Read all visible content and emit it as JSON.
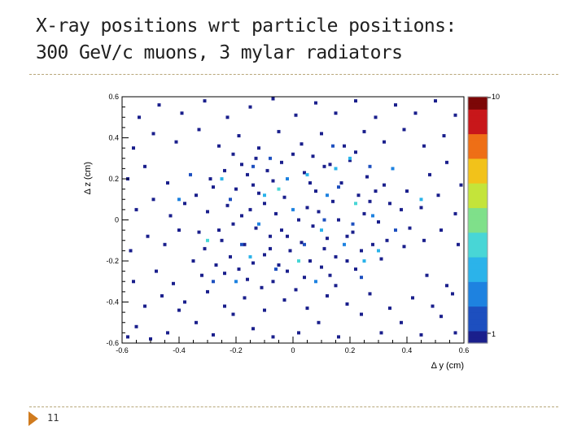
{
  "slide": {
    "title_line1": "X-ray positions wrt particle positions:",
    "title_line2": "300 GeV/c muons, 3 mylar radiators",
    "page_number": "11"
  },
  "colors": {
    "accent": "#d07b1e",
    "rule": "#b8a77a",
    "marker_low": "#1a1f8c"
  },
  "chart_data": {
    "type": "heatmap",
    "title": "",
    "xlabel": "Δ y (cm)",
    "ylabel": "Δ z (cm)",
    "xlim": [
      -0.6,
      0.6
    ],
    "ylim": [
      -0.6,
      0.6
    ],
    "xticks": [
      "-0.6",
      "-0.4",
      "-0.2",
      "0",
      "0.2",
      "0.4",
      "0.6"
    ],
    "yticks": [
      "-0.6",
      "-0.4",
      "-0.2",
      "0",
      "0.2",
      "0.4",
      "0.6"
    ],
    "colorbar": {
      "min": 1,
      "max": 10,
      "labels": [
        "1",
        "10"
      ]
    },
    "points": [
      [
        -0.58,
        -0.57,
        1
      ],
      [
        -0.55,
        -0.52,
        1
      ],
      [
        -0.5,
        -0.58,
        1
      ],
      [
        -0.44,
        -0.55,
        1
      ],
      [
        -0.4,
        -0.44,
        1
      ],
      [
        -0.34,
        -0.5,
        1
      ],
      [
        -0.28,
        -0.56,
        1
      ],
      [
        -0.21,
        -0.46,
        1
      ],
      [
        -0.14,
        -0.53,
        1
      ],
      [
        -0.07,
        -0.57,
        1
      ],
      [
        0.02,
        -0.55,
        1
      ],
      [
        0.09,
        -0.5,
        1
      ],
      [
        0.16,
        -0.57,
        1
      ],
      [
        0.24,
        -0.46,
        1
      ],
      [
        0.31,
        -0.55,
        1
      ],
      [
        0.38,
        -0.5,
        1
      ],
      [
        0.45,
        -0.56,
        1
      ],
      [
        0.52,
        -0.47,
        1
      ],
      [
        0.57,
        -0.55,
        1
      ],
      [
        -0.52,
        -0.42,
        1
      ],
      [
        -0.46,
        -0.37,
        1
      ],
      [
        -0.38,
        -0.4,
        1
      ],
      [
        -0.3,
        -0.35,
        1
      ],
      [
        -0.24,
        -0.42,
        1
      ],
      [
        -0.17,
        -0.38,
        1
      ],
      [
        -0.1,
        -0.44,
        1
      ],
      [
        -0.03,
        -0.39,
        1
      ],
      [
        0.05,
        -0.43,
        1
      ],
      [
        0.12,
        -0.37,
        1
      ],
      [
        0.19,
        -0.41,
        1
      ],
      [
        0.27,
        -0.36,
        1
      ],
      [
        0.34,
        -0.43,
        1
      ],
      [
        0.42,
        -0.38,
        1
      ],
      [
        0.49,
        -0.42,
        1
      ],
      [
        0.56,
        -0.36,
        1
      ],
      [
        -0.56,
        -0.3,
        1
      ],
      [
        -0.48,
        -0.25,
        1
      ],
      [
        -0.42,
        -0.31,
        1
      ],
      [
        0.47,
        -0.27,
        1
      ],
      [
        0.54,
        -0.32,
        1
      ],
      [
        -0.57,
        -0.15,
        1
      ],
      [
        -0.51,
        -0.08,
        1
      ],
      [
        -0.45,
        -0.12,
        1
      ],
      [
        0.46,
        -0.1,
        1
      ],
      [
        0.52,
        -0.05,
        1
      ],
      [
        0.58,
        -0.12,
        1
      ],
      [
        -0.55,
        0.05,
        1
      ],
      [
        -0.49,
        0.1,
        1
      ],
      [
        -0.43,
        0.02,
        1
      ],
      [
        0.45,
        0.06,
        1
      ],
      [
        0.51,
        0.12,
        1
      ],
      [
        0.57,
        0.03,
        1
      ],
      [
        -0.58,
        0.2,
        1
      ],
      [
        -0.52,
        0.26,
        1
      ],
      [
        -0.44,
        0.18,
        1
      ],
      [
        0.48,
        0.22,
        1
      ],
      [
        0.54,
        0.28,
        1
      ],
      [
        0.59,
        0.17,
        1
      ],
      [
        -0.56,
        0.35,
        1
      ],
      [
        -0.49,
        0.42,
        1
      ],
      [
        -0.41,
        0.38,
        1
      ],
      [
        -0.33,
        0.44,
        1
      ],
      [
        -0.26,
        0.36,
        1
      ],
      [
        -0.19,
        0.41,
        1
      ],
      [
        -0.12,
        0.35,
        1
      ],
      [
        -0.05,
        0.43,
        1
      ],
      [
        0.03,
        0.37,
        1
      ],
      [
        0.1,
        0.42,
        1
      ],
      [
        0.18,
        0.36,
        1
      ],
      [
        0.25,
        0.43,
        1
      ],
      [
        0.32,
        0.38,
        1
      ],
      [
        0.39,
        0.44,
        1
      ],
      [
        0.46,
        0.36,
        1
      ],
      [
        0.53,
        0.41,
        1
      ],
      [
        -0.54,
        0.5,
        1
      ],
      [
        -0.47,
        0.56,
        1
      ],
      [
        -0.39,
        0.52,
        1
      ],
      [
        -0.31,
        0.58,
        1
      ],
      [
        -0.23,
        0.5,
        1
      ],
      [
        -0.15,
        0.55,
        1
      ],
      [
        -0.07,
        0.59,
        1
      ],
      [
        0.01,
        0.51,
        1
      ],
      [
        0.08,
        0.57,
        1
      ],
      [
        0.15,
        0.52,
        1
      ],
      [
        0.22,
        0.58,
        1
      ],
      [
        0.29,
        0.5,
        1
      ],
      [
        0.36,
        0.56,
        1
      ],
      [
        0.43,
        0.52,
        1
      ],
      [
        0.5,
        0.58,
        1
      ],
      [
        0.57,
        0.51,
        1
      ],
      [
        -0.35,
        -0.2,
        1
      ],
      [
        -0.31,
        -0.14,
        1
      ],
      [
        -0.33,
        -0.06,
        1
      ],
      [
        -0.3,
        0.04,
        1
      ],
      [
        -0.34,
        0.12,
        1
      ],
      [
        -0.29,
        0.2,
        1
      ],
      [
        -0.24,
        -0.26,
        1
      ],
      [
        -0.22,
        -0.18,
        1
      ],
      [
        -0.25,
        -0.1,
        1
      ],
      [
        -0.21,
        -0.02,
        1
      ],
      [
        -0.23,
        0.07,
        1
      ],
      [
        -0.2,
        0.15,
        1
      ],
      [
        -0.24,
        0.24,
        1
      ],
      [
        -0.16,
        -0.29,
        1
      ],
      [
        -0.14,
        -0.21,
        1
      ],
      [
        -0.17,
        -0.12,
        1
      ],
      [
        -0.13,
        -0.04,
        1
      ],
      [
        -0.15,
        0.05,
        1
      ],
      [
        -0.12,
        0.13,
        1
      ],
      [
        -0.16,
        0.22,
        1
      ],
      [
        -0.13,
        0.3,
        1
      ],
      [
        -0.07,
        -0.3,
        1
      ],
      [
        -0.05,
        -0.22,
        1
      ],
      [
        -0.08,
        -0.14,
        1
      ],
      [
        -0.04,
        -0.05,
        1
      ],
      [
        -0.06,
        0.03,
        1
      ],
      [
        -0.03,
        0.11,
        1
      ],
      [
        -0.07,
        0.19,
        1
      ],
      [
        -0.04,
        0.28,
        1
      ],
      [
        0.04,
        -0.28,
        1
      ],
      [
        0.06,
        -0.2,
        1
      ],
      [
        0.03,
        -0.11,
        1
      ],
      [
        0.07,
        -0.03,
        1
      ],
      [
        0.05,
        0.06,
        1
      ],
      [
        0.08,
        0.14,
        1
      ],
      [
        0.04,
        0.23,
        1
      ],
      [
        0.07,
        0.31,
        1
      ],
      [
        0.13,
        -0.27,
        1
      ],
      [
        0.15,
        -0.18,
        1
      ],
      [
        0.12,
        -0.09,
        1
      ],
      [
        0.16,
        0.0,
        1
      ],
      [
        0.14,
        0.09,
        1
      ],
      [
        0.17,
        0.18,
        1
      ],
      [
        0.13,
        0.27,
        1
      ],
      [
        0.22,
        -0.24,
        1
      ],
      [
        0.24,
        -0.15,
        1
      ],
      [
        0.21,
        -0.06,
        1
      ],
      [
        0.25,
        0.03,
        1
      ],
      [
        0.23,
        0.12,
        1
      ],
      [
        0.26,
        0.21,
        1
      ],
      [
        0.31,
        -0.19,
        1
      ],
      [
        0.33,
        -0.1,
        1
      ],
      [
        0.3,
        -0.01,
        1
      ],
      [
        0.34,
        0.08,
        1
      ],
      [
        0.32,
        0.17,
        1
      ],
      [
        0.39,
        -0.13,
        1
      ],
      [
        0.41,
        -0.04,
        1
      ],
      [
        0.38,
        0.05,
        1
      ],
      [
        0.4,
        0.14,
        1
      ],
      [
        -0.4,
        -0.05,
        1
      ],
      [
        -0.38,
        0.08,
        1
      ],
      [
        -0.27,
        -0.22,
        1
      ],
      [
        -0.19,
        -0.24,
        1
      ],
      [
        -0.1,
        -0.17,
        1
      ],
      [
        -0.02,
        -0.25,
        1
      ],
      [
        0.1,
        -0.23,
        1
      ],
      [
        0.19,
        -0.2,
        1
      ],
      [
        0.28,
        -0.12,
        1
      ],
      [
        -0.28,
        0.16,
        1
      ],
      [
        -0.18,
        0.27,
        1
      ],
      [
        -0.09,
        0.24,
        1
      ],
      [
        0.0,
        0.32,
        1
      ],
      [
        0.11,
        0.26,
        1
      ],
      [
        0.2,
        0.29,
        1
      ],
      [
        0.29,
        0.14,
        1
      ],
      [
        -0.26,
        -0.05,
        1
      ],
      [
        -0.18,
        0.02,
        1
      ],
      [
        -0.1,
        0.08,
        1
      ],
      [
        -0.01,
        -0.15,
        1
      ],
      [
        0.09,
        0.04,
        1
      ],
      [
        0.19,
        -0.08,
        1
      ],
      [
        0.27,
        0.09,
        1
      ],
      [
        -0.32,
        -0.27,
        1
      ],
      [
        -0.11,
        -0.33,
        1
      ],
      [
        0.01,
        -0.34,
        1
      ],
      [
        0.15,
        -0.32,
        1
      ],
      [
        -0.21,
        0.32,
        1
      ],
      [
        0.22,
        0.33,
        1
      ],
      [
        0.02,
        0.0,
        1
      ],
      [
        -0.02,
        -0.08,
        1
      ],
      [
        0.11,
        -0.14,
        1
      ],
      [
        -0.14,
        0.17,
        1
      ],
      [
        -0.08,
        -0.08,
        1
      ],
      [
        0.06,
        0.18,
        1
      ],
      [
        -0.25,
        0.2,
        4
      ],
      [
        0.15,
        0.25,
        4
      ],
      [
        0.1,
        -0.05,
        4
      ],
      [
        0.25,
        -0.2,
        4
      ],
      [
        -0.1,
        0.12,
        4
      ],
      [
        0.2,
        0.3,
        4
      ],
      [
        -0.15,
        -0.18,
        4
      ],
      [
        0.05,
        0.22,
        4
      ],
      [
        0.22,
        0.08,
        5
      ],
      [
        -0.3,
        -0.1,
        5
      ],
      [
        0.02,
        -0.2,
        5
      ],
      [
        -0.05,
        0.15,
        5
      ],
      [
        0.3,
        -0.15,
        4
      ],
      [
        0.45,
        0.1,
        4
      ],
      [
        -0.2,
        -0.3,
        3
      ],
      [
        0.12,
        0.12,
        3
      ],
      [
        -0.02,
        0.2,
        3
      ],
      [
        0.18,
        -0.12,
        3
      ],
      [
        -0.12,
        -0.02,
        3
      ],
      [
        -0.4,
        0.1,
        3
      ],
      [
        0.35,
        0.25,
        3
      ],
      [
        0.08,
        -0.3,
        3
      ],
      [
        0.28,
        0.02,
        3
      ],
      [
        0.0,
        0.05,
        3
      ],
      [
        -0.08,
        0.3,
        2
      ],
      [
        0.16,
        0.16,
        2
      ],
      [
        -0.22,
        0.1,
        2
      ],
      [
        0.24,
        -0.28,
        2
      ],
      [
        0.04,
        -0.12,
        2
      ],
      [
        -0.18,
        -0.12,
        2
      ],
      [
        0.36,
        -0.05,
        2
      ],
      [
        -0.36,
        0.22,
        2
      ],
      [
        0.14,
        0.36,
        2
      ],
      [
        -0.28,
        -0.3,
        2
      ],
      [
        -0.06,
        -0.24,
        2
      ],
      [
        0.27,
        0.26,
        2
      ],
      [
        0.11,
        0.0,
        2
      ],
      [
        -0.14,
        0.26,
        2
      ],
      [
        0.21,
        -0.02,
        2
      ]
    ]
  }
}
